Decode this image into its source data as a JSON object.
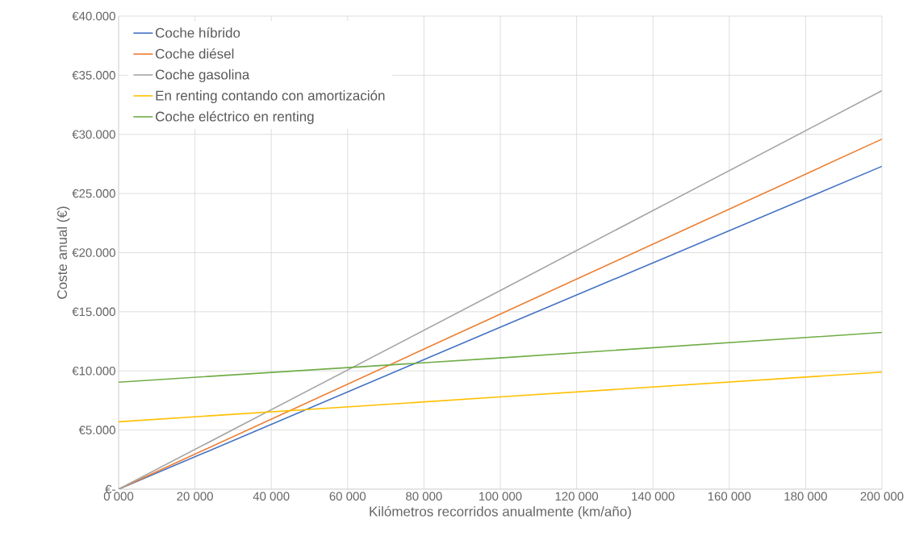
{
  "chart_data": {
    "type": "line",
    "xlabel": "Kilómetros recorridos anualmente (km/año)",
    "ylabel": "Coste anual (€)",
    "x": [
      0,
      100000,
      200000
    ],
    "series": [
      {
        "name": "Coche híbrido",
        "color": "#4472c4",
        "values": [
          0,
          13700,
          27300
        ]
      },
      {
        "name": "Coche diésel",
        "color": "#ed7d31",
        "values": [
          0,
          14800,
          29600
        ]
      },
      {
        "name": "Coche gasolina",
        "color": "#a5a5a5",
        "values": [
          0,
          16800,
          33700
        ]
      },
      {
        "name": "En renting contando con amortización",
        "color": "#ffc000",
        "values": [
          5700,
          7800,
          9900
        ]
      },
      {
        "name": "Coche eléctrico en renting",
        "color": "#70ad47",
        "values": [
          9050,
          11100,
          13250
        ]
      }
    ],
    "xlim": [
      0,
      200000
    ],
    "ylim": [
      0,
      40000
    ],
    "xticks": [
      {
        "value": 0,
        "label": "0 000"
      },
      {
        "value": 20000,
        "label": "20 000"
      },
      {
        "value": 40000,
        "label": "40 000"
      },
      {
        "value": 60000,
        "label": "60 000"
      },
      {
        "value": 80000,
        "label": "80 000"
      },
      {
        "value": 100000,
        "label": "100 000"
      },
      {
        "value": 120000,
        "label": "120 000"
      },
      {
        "value": 140000,
        "label": "140 000"
      },
      {
        "value": 160000,
        "label": "160 000"
      },
      {
        "value": 180000,
        "label": "180 000"
      },
      {
        "value": 200000,
        "label": "200 000"
      }
    ],
    "yticks": [
      {
        "value": 0,
        "label": "€-"
      },
      {
        "value": 5000,
        "label": "€5.000"
      },
      {
        "value": 10000,
        "label": "€10.000"
      },
      {
        "value": 15000,
        "label": "€15.000"
      },
      {
        "value": 20000,
        "label": "€20.000"
      },
      {
        "value": 25000,
        "label": "€25.000"
      },
      {
        "value": 30000,
        "label": "€30.000"
      },
      {
        "value": 35000,
        "label": "€35.000"
      },
      {
        "value": 40000,
        "label": "€40.000"
      }
    ],
    "grid": true,
    "legend": "top left",
    "marker": "none",
    "line_style": "solid"
  }
}
